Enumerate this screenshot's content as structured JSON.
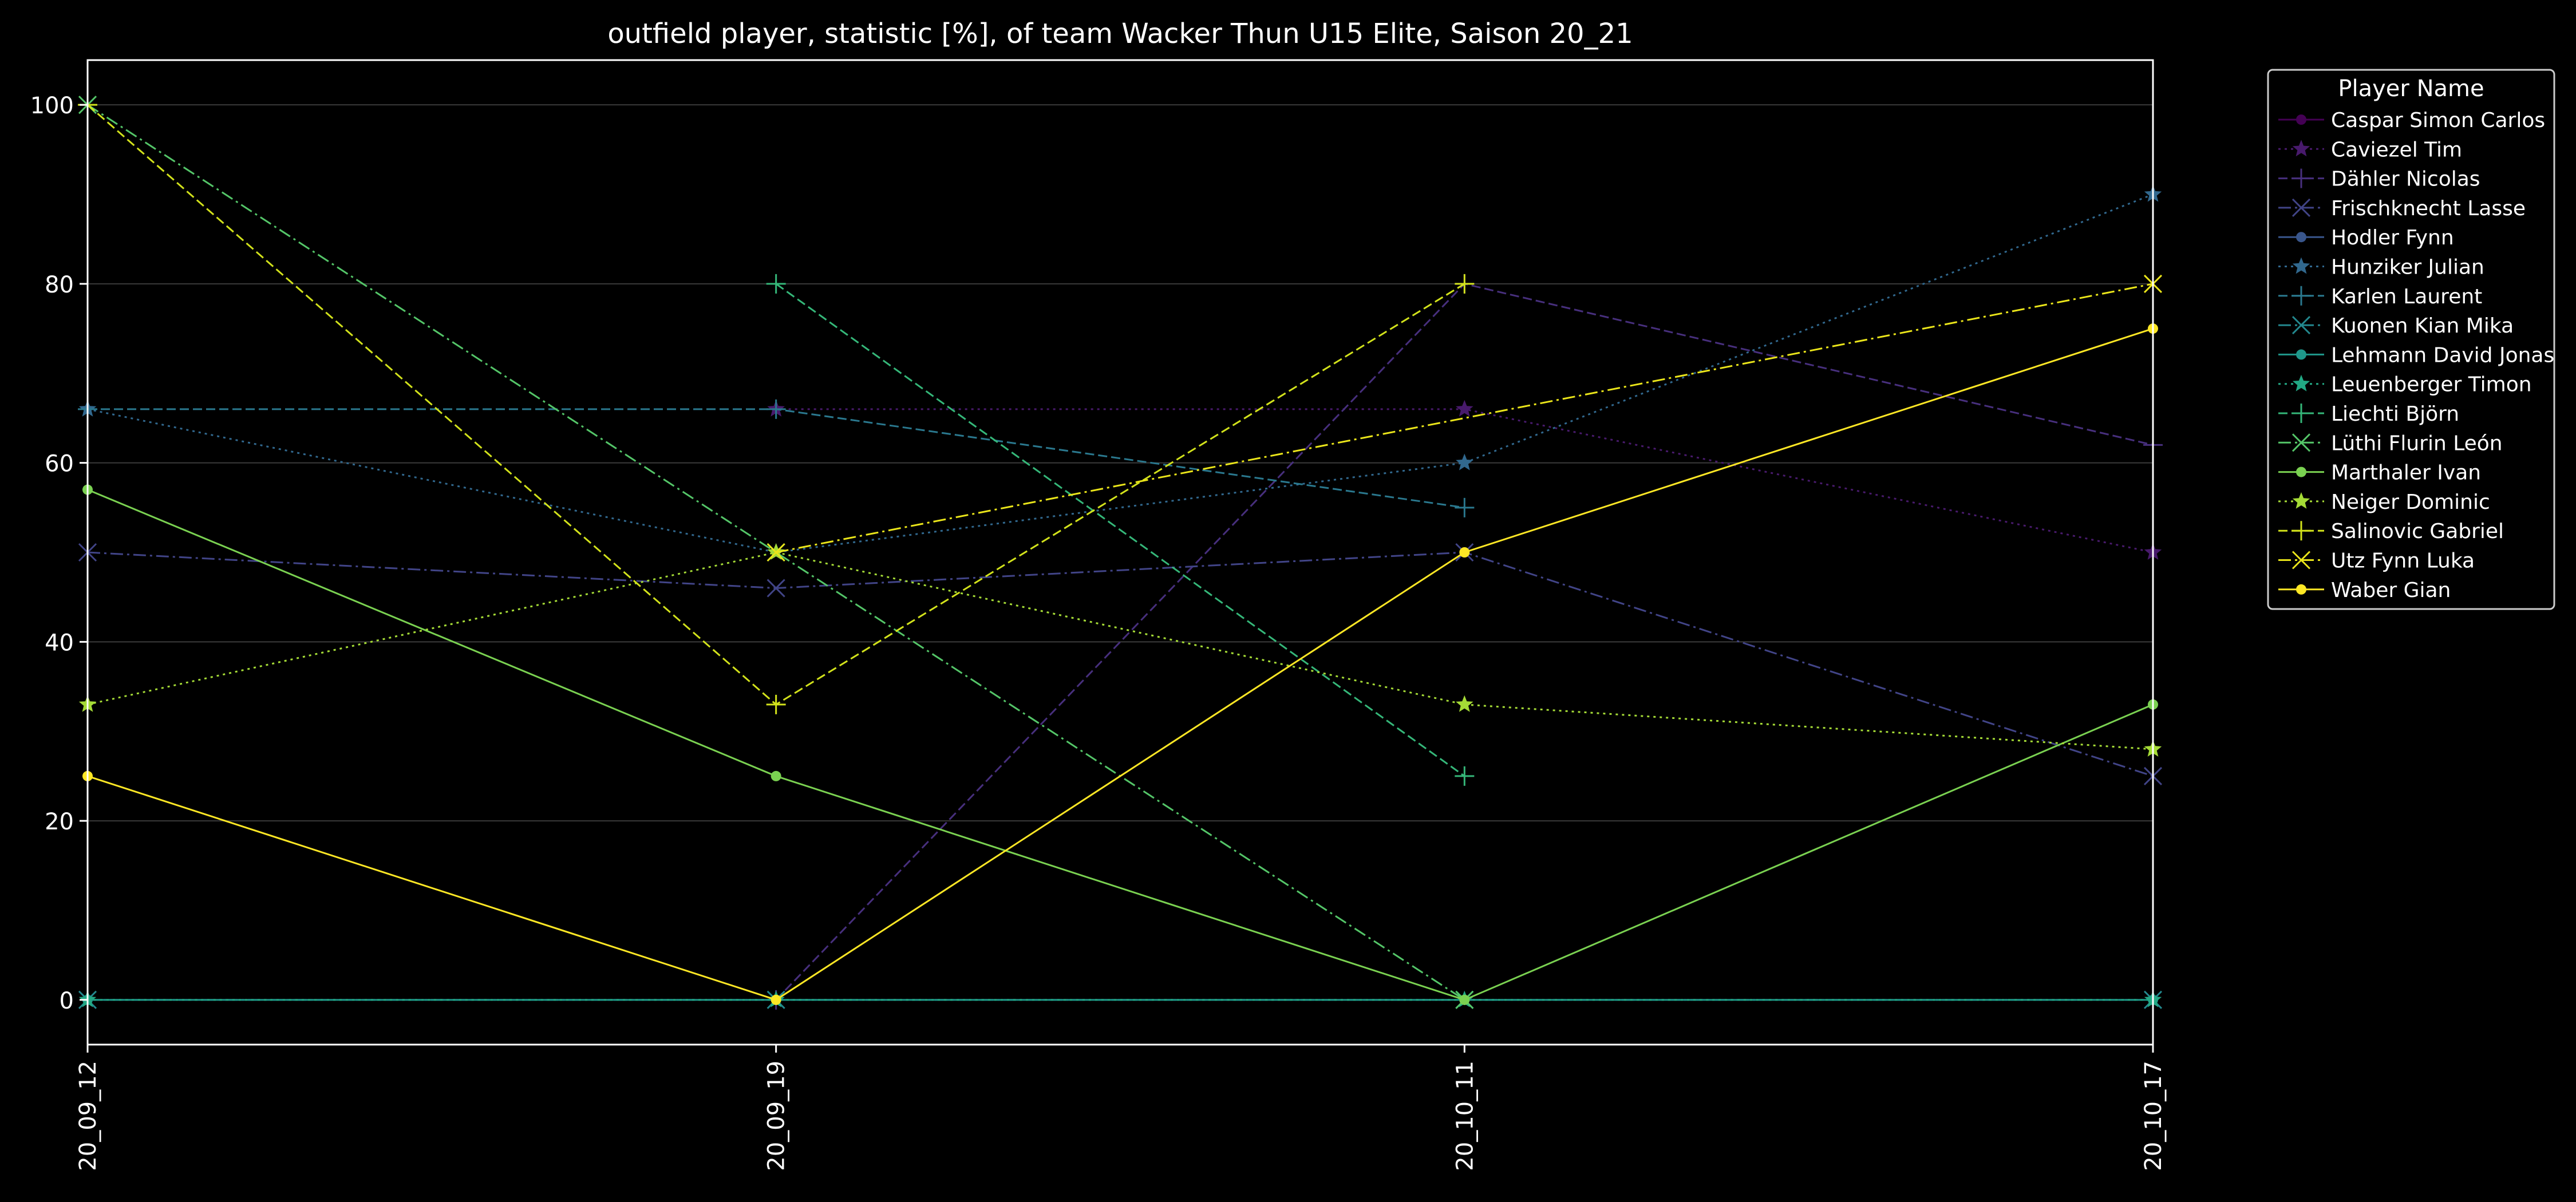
{
  "chart_data": {
    "type": "line",
    "title": "outfield player, statistic [%], of team Wacker Thun U15 Elite, Saison 20_21",
    "xlabel": "",
    "ylabel": "",
    "categories": [
      "20_09_12",
      "20_09_19",
      "20_10_11",
      "20_10_17"
    ],
    "ylim": [
      -5,
      105
    ],
    "yticks": [
      0,
      20,
      40,
      60,
      80,
      100
    ],
    "grid": true,
    "legend": {
      "title": "Player Name",
      "placement": "outside-right"
    },
    "series": [
      {
        "name": "Caspar Simon Carlos",
        "color": "#440154",
        "marker": "circle",
        "dash": "solid",
        "values": [
          null,
          null,
          null,
          null
        ]
      },
      {
        "name": "Caviezel Tim",
        "color": "#481a6c",
        "marker": "star",
        "dash": "dotted",
        "values": [
          null,
          66,
          66,
          50
        ]
      },
      {
        "name": "Dähler Nicolas",
        "color": "#472f7d",
        "marker": "plus",
        "dash": "dashed",
        "values": [
          null,
          0,
          80,
          62
        ]
      },
      {
        "name": "Frischknecht Lasse",
        "color": "#414487",
        "marker": "x",
        "dash": "dashdot",
        "values": [
          50,
          46,
          50,
          25
        ]
      },
      {
        "name": "Hodler Fynn",
        "color": "#39568c",
        "marker": "circle",
        "dash": "solid",
        "values": [
          null,
          null,
          null,
          null
        ]
      },
      {
        "name": "Hunziker Julian",
        "color": "#31688e",
        "marker": "star",
        "dash": "dotted",
        "values": [
          66,
          50,
          60,
          90
        ]
      },
      {
        "name": "Karlen Laurent",
        "color": "#2a788e",
        "marker": "plus",
        "dash": "dashed",
        "values": [
          66,
          66,
          55,
          null
        ]
      },
      {
        "name": "Kuonen Kian Mika",
        "color": "#23888e",
        "marker": "x",
        "dash": "dashdot",
        "values": [
          0,
          0,
          0,
          0
        ]
      },
      {
        "name": "Lehmann David Jonas",
        "color": "#1f988b",
        "marker": "circle",
        "dash": "solid",
        "values": [
          0,
          0,
          0,
          0
        ]
      },
      {
        "name": "Leuenberger Timon",
        "color": "#22a884",
        "marker": "star",
        "dash": "dotted",
        "values": [
          0,
          0,
          0,
          0
        ]
      },
      {
        "name": "Liechti Björn",
        "color": "#35b779",
        "marker": "plus",
        "dash": "dashed",
        "values": [
          null,
          80,
          25,
          null
        ]
      },
      {
        "name": "Lüthi Flurin León",
        "color": "#54c568",
        "marker": "x",
        "dash": "dashdot",
        "values": [
          100,
          50,
          0,
          null
        ]
      },
      {
        "name": "Marthaler Ivan",
        "color": "#7ad151",
        "marker": "circle",
        "dash": "solid",
        "values": [
          57,
          25,
          0,
          33
        ]
      },
      {
        "name": "Neiger Dominic",
        "color": "#a5db36",
        "marker": "star",
        "dash": "dotted",
        "values": [
          33,
          50,
          33,
          28
        ]
      },
      {
        "name": "Salinovic Gabriel",
        "color": "#d2e21b",
        "marker": "plus",
        "dash": "dashed",
        "values": [
          100,
          33,
          80,
          null
        ]
      },
      {
        "name": "Utz Fynn Luka",
        "color": "#eae51a",
        "marker": "x",
        "dash": "dashdot",
        "values": [
          null,
          50,
          null,
          80
        ]
      },
      {
        "name": "Waber Gian",
        "color": "#fde725",
        "marker": "circle",
        "dash": "solid",
        "values": [
          25,
          0,
          50,
          75
        ]
      }
    ]
  }
}
